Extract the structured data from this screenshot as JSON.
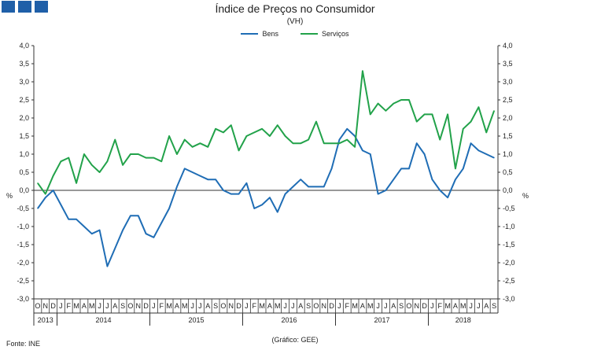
{
  "logo_icon": "three-blue-squares",
  "source": "Fonte: INE",
  "credit": "(Gráfico: GEE)",
  "chart_data": {
    "type": "line",
    "title": "Índice de Preços no Consumidor",
    "subtitle": "(VH)",
    "ylabel_left": "%",
    "ylabel_right": "%",
    "ylim": [
      -3.0,
      4.0
    ],
    "yticks": [
      "4,0",
      "3,5",
      "3,0",
      "2,5",
      "2,0",
      "1,5",
      "1,0",
      "0,5",
      "0,0",
      "-0,5",
      "-1,0",
      "-1,5",
      "-2,0",
      "-2,5",
      "-3,0"
    ],
    "grid": false,
    "legend": "top-center",
    "categories": [
      "O",
      "N",
      "D",
      "J",
      "F",
      "M",
      "A",
      "M",
      "J",
      "J",
      "A",
      "S",
      "O",
      "N",
      "D",
      "J",
      "F",
      "M",
      "A",
      "M",
      "J",
      "J",
      "A",
      "S",
      "O",
      "N",
      "D",
      "J",
      "F",
      "M",
      "A",
      "M",
      "J",
      "J",
      "A",
      "S",
      "O",
      "N",
      "D",
      "J",
      "F",
      "M",
      "A",
      "M",
      "J",
      "J",
      "A",
      "S",
      "O",
      "N",
      "D",
      "J",
      "F",
      "M",
      "A",
      "M",
      "J",
      "J",
      "A",
      "S"
    ],
    "years": [
      {
        "label": "2013",
        "start": 0,
        "count": 3
      },
      {
        "label": "2014",
        "start": 3,
        "count": 12
      },
      {
        "label": "2015",
        "start": 15,
        "count": 12
      },
      {
        "label": "2016",
        "start": 27,
        "count": 12
      },
      {
        "label": "2017",
        "start": 39,
        "count": 12
      },
      {
        "label": "2018",
        "start": 51,
        "count": 9
      }
    ],
    "series": [
      {
        "name": "Bens",
        "color": "#1f6db5",
        "values": [
          -0.5,
          -0.2,
          0.0,
          -0.4,
          -0.8,
          -0.8,
          -1.0,
          -1.2,
          -1.1,
          -2.1,
          -1.6,
          -1.1,
          -0.7,
          -0.7,
          -1.2,
          -1.3,
          -0.9,
          -0.5,
          0.1,
          0.6,
          0.5,
          0.4,
          0.3,
          0.3,
          0.0,
          -0.1,
          -0.1,
          0.2,
          -0.5,
          -0.4,
          -0.2,
          -0.6,
          -0.1,
          0.1,
          0.3,
          0.1,
          0.1,
          0.1,
          0.6,
          1.4,
          1.7,
          1.5,
          1.1,
          1.0,
          -0.1,
          0.0,
          0.3,
          0.6,
          0.6,
          1.3,
          1.0,
          0.3,
          0.0,
          -0.2,
          0.3,
          0.6,
          1.3,
          1.1,
          1.0,
          0.9
        ]
      },
      {
        "name": "Serviços",
        "color": "#22a24a",
        "values": [
          0.2,
          -0.1,
          0.4,
          0.8,
          0.9,
          0.2,
          1.0,
          0.7,
          0.5,
          0.8,
          1.4,
          0.7,
          1.0,
          1.0,
          0.9,
          0.9,
          0.8,
          1.5,
          1.0,
          1.4,
          1.2,
          1.3,
          1.2,
          1.7,
          1.6,
          1.8,
          1.1,
          1.5,
          1.6,
          1.7,
          1.5,
          1.8,
          1.5,
          1.3,
          1.3,
          1.4,
          1.9,
          1.3,
          1.3,
          1.3,
          1.4,
          1.2,
          3.3,
          2.1,
          2.4,
          2.2,
          2.4,
          2.5,
          2.5,
          1.9,
          2.1,
          2.1,
          1.4,
          2.1,
          0.6,
          1.7,
          1.9,
          2.3,
          1.6,
          2.2
        ]
      }
    ]
  }
}
